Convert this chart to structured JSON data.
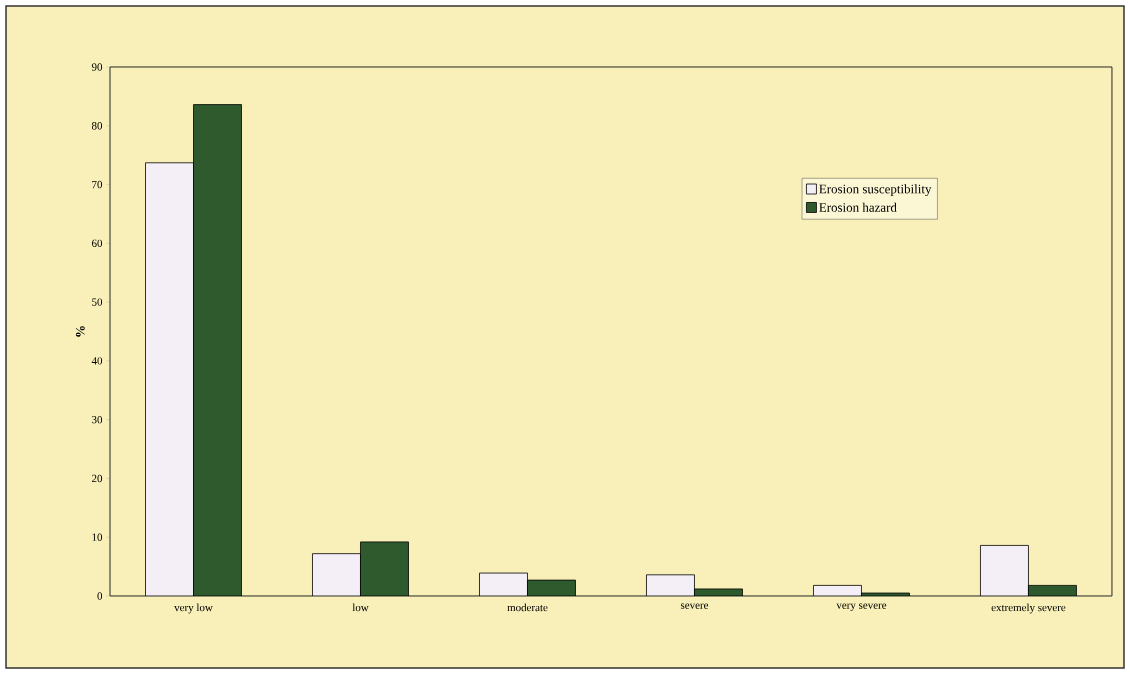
{
  "chart_data": {
    "type": "bar",
    "ylabel": "%",
    "categories": [
      "very low",
      "low",
      "moderate",
      "severe",
      "very severe",
      "extremely severe"
    ],
    "series": [
      {
        "name": "Erosion susceptibility",
        "color": "#f4eef6",
        "values": [
          73.7,
          7.2,
          3.9,
          3.6,
          1.8,
          8.6
        ]
      },
      {
        "name": "Erosion hazard",
        "color": "#2e5a2e",
        "values": [
          83.6,
          9.2,
          2.7,
          1.2,
          0.5,
          1.8
        ]
      }
    ],
    "ylim": [
      0,
      90
    ],
    "yticks": [
      0,
      10,
      20,
      30,
      40,
      50,
      60,
      70,
      80,
      90
    ],
    "grid": false,
    "legend": "top right"
  }
}
